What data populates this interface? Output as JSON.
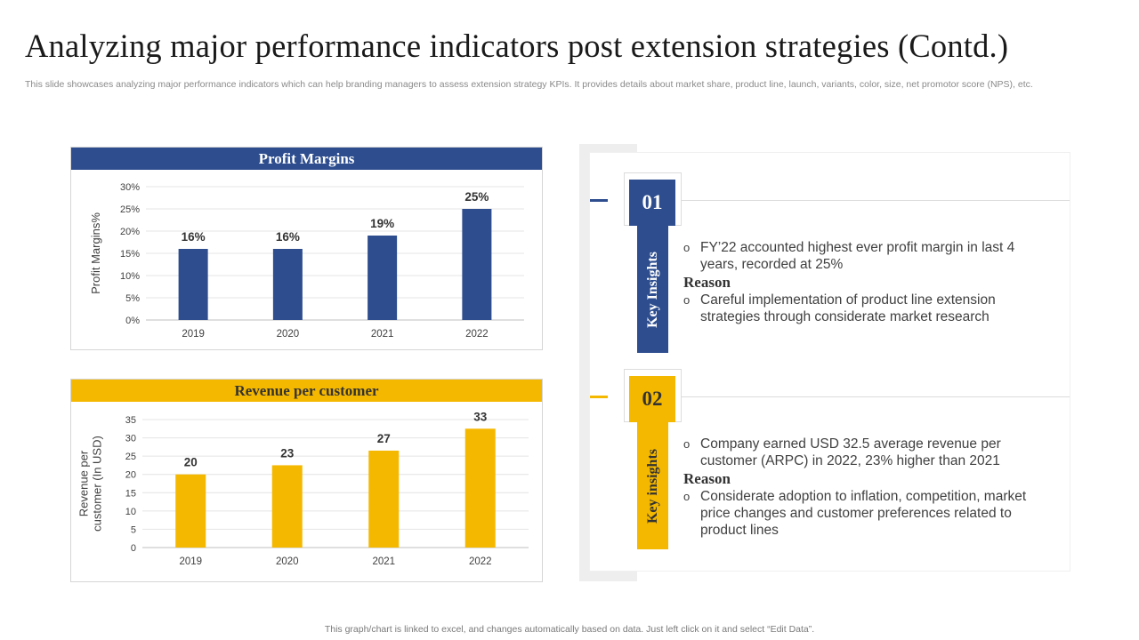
{
  "title": "Analyzing major performance indicators post extension strategies (Contd.)",
  "subtitle": "This slide showcases analyzing major performance indicators which can help branding managers to assess extension strategy KPIs. It provides details about market share, product line, launch, variants, color, size, net promotor score (NPS), etc.",
  "footer": "This graph/chart is linked to excel,  and changes automatically based on data. Just left click on it and select “Edit Data”.",
  "colors": {
    "blue": "#2d4d8e",
    "yellow": "#f5b800"
  },
  "chart_data": [
    {
      "type": "bar",
      "title": "Profit Margins",
      "categories": [
        "2019",
        "2020",
        "2021",
        "2022"
      ],
      "values": [
        16,
        16,
        19,
        25
      ],
      "data_labels": [
        "16%",
        "16%",
        "19%",
        "25%"
      ],
      "ylabel": "Profit Margins%",
      "xlabel": "",
      "ylim": [
        0,
        30
      ],
      "yticks": [
        "0%",
        "5%",
        "10%",
        "15%",
        "20%",
        "25%",
        "30%"
      ],
      "grid": true,
      "color": "#2d4d8e"
    },
    {
      "type": "bar",
      "title": "Revenue per customer",
      "categories": [
        "2019",
        "2020",
        "2021",
        "2022"
      ],
      "values": [
        20,
        22.5,
        26.5,
        32.5
      ],
      "data_labels": [
        "20",
        "23",
        "27",
        "33"
      ],
      "ylabel": "Revenue per customer (In USD)",
      "ylabel_lines": [
        "Revenue per",
        "customer (In USD)"
      ],
      "xlabel": "",
      "ylim": [
        0,
        35
      ],
      "yticks": [
        "0",
        "5",
        "10",
        "15",
        "20",
        "25",
        "30",
        "35"
      ],
      "grid": true,
      "color": "#f5b800"
    }
  ],
  "insights": [
    {
      "number": "01",
      "label": "Key Insights",
      "point": "FY’22 accounted highest ever profit margin in last 4 years, recorded at 25%",
      "reason_heading": "Reason",
      "reason": "Careful implementation of product line extension strategies through considerate market research"
    },
    {
      "number": "02",
      "label": "Key insights",
      "point": "Company earned USD 32.5 average revenue per customer (ARPC) in 2022, 23% higher than 2021",
      "reason_heading": "Reason",
      "reason": "Considerate adoption to inflation, competition, market price changes and customer preferences related to product lines"
    }
  ]
}
